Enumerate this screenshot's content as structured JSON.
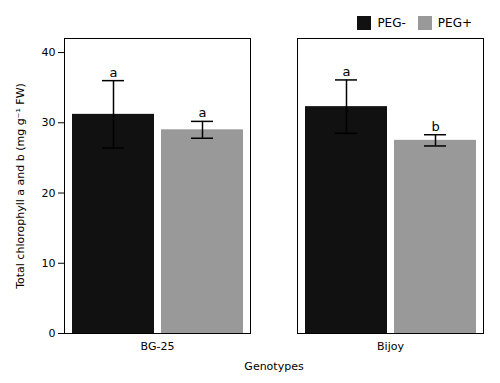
{
  "chart_data": {
    "type": "bar",
    "categories": [
      "BG-25",
      "Bijoy"
    ],
    "series": [
      {
        "name": "PEG-",
        "color": "#111111",
        "values": [
          31.2,
          32.3
        ],
        "errors": [
          4.8,
          3.8
        ],
        "letters": [
          "a",
          "a"
        ]
      },
      {
        "name": "PEG+",
        "color": "#999999",
        "values": [
          29.0,
          27.5
        ],
        "errors": [
          1.2,
          0.8
        ],
        "letters": [
          "a",
          "b"
        ]
      }
    ],
    "xlabel": "Genotypes",
    "ylabel": "Total chlorophyll a and b (mg g⁻¹ FW)",
    "ylim": [
      0,
      42
    ],
    "yticks": [
      0,
      10,
      20,
      30,
      40
    ],
    "legend": "upper right"
  }
}
